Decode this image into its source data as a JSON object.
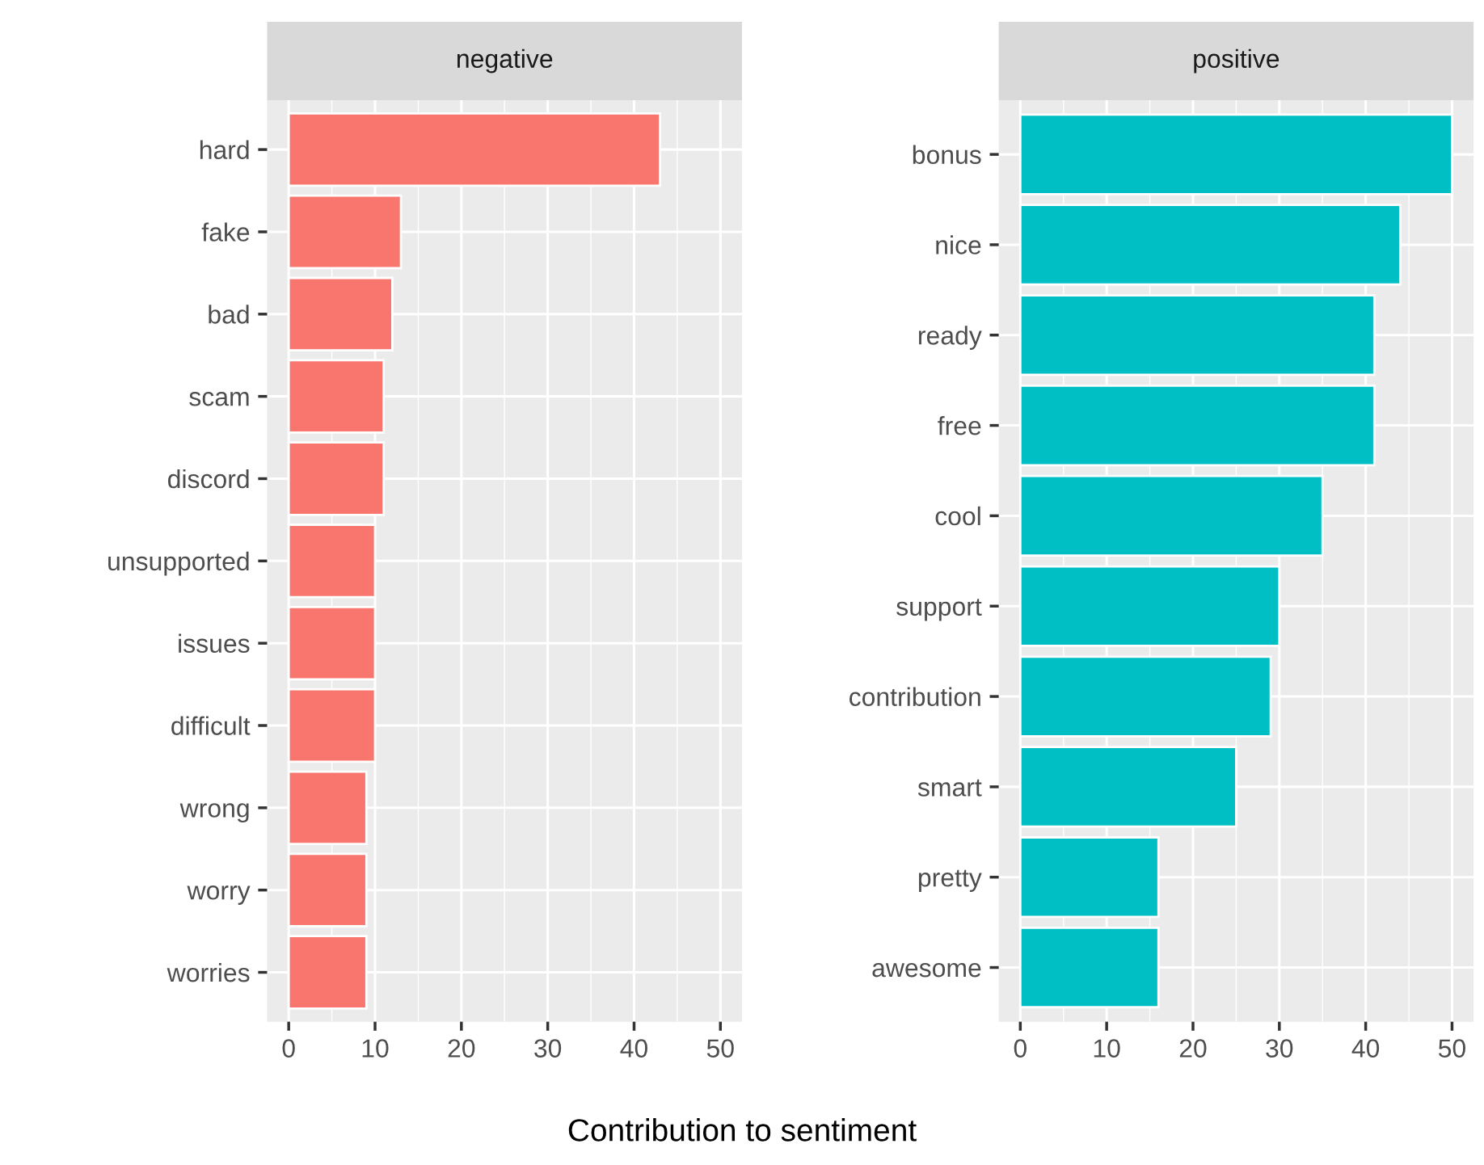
{
  "chart_data": [
    {
      "type": "bar",
      "title": "negative",
      "xlabel": "Contribution to sentiment",
      "orientation": "horizontal",
      "categories": [
        "hard",
        "fake",
        "bad",
        "scam",
        "discord",
        "unsupported",
        "issues",
        "difficult",
        "wrong",
        "worry",
        "worries"
      ],
      "values": [
        43,
        13,
        12,
        11,
        11,
        10,
        10,
        10,
        9,
        9,
        9
      ],
      "color": "#f8766d",
      "xlim": [
        -2.5,
        52.5
      ],
      "xticks": [
        0,
        10,
        20,
        30,
        40,
        50
      ],
      "grid": true
    },
    {
      "type": "bar",
      "title": "positive",
      "orientation": "horizontal",
      "categories": [
        "bonus",
        "nice",
        "ready",
        "free",
        "cool",
        "support",
        "contribution",
        "smart",
        "pretty",
        "awesome"
      ],
      "values": [
        50,
        44,
        41,
        41,
        35,
        30,
        29,
        25,
        16,
        16
      ],
      "color": "#00bfc4",
      "xlim": [
        -2.5,
        52.5
      ],
      "xticks": [
        0,
        10,
        20,
        30,
        40,
        50
      ],
      "grid": true
    }
  ]
}
